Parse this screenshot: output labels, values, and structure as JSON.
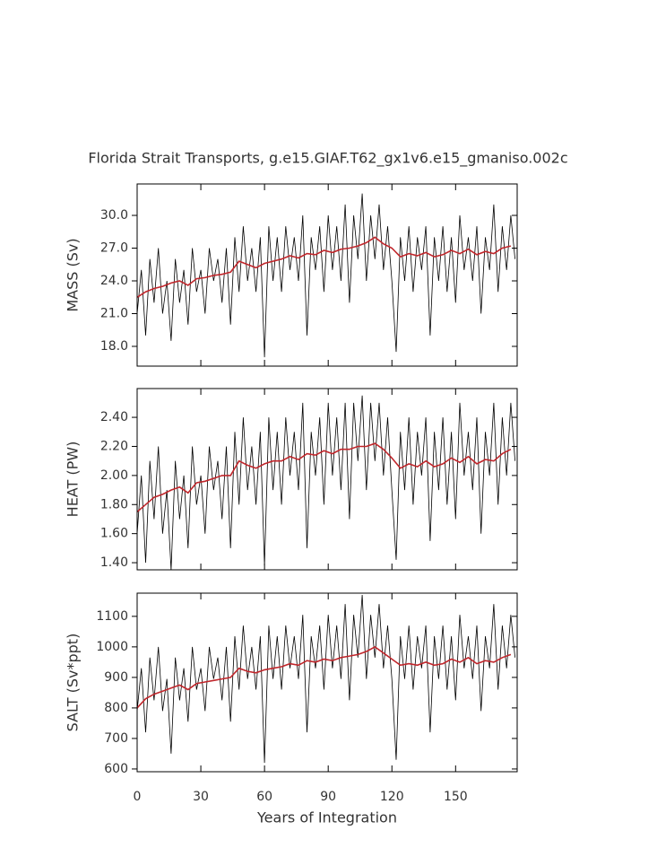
{
  "chart_data": [
    {
      "type": "line",
      "title": "Florida Strait Transports, g.e15.GIAF.T62_gx1v6.e15_gmaniso.002c",
      "ylabel": "MASS (Sv)",
      "xlim": [
        0,
        179
      ],
      "ylim": [
        16.19,
        32.88
      ],
      "yticks": [
        {
          "value": 18,
          "label": "18.0"
        },
        {
          "value": 21,
          "label": "21.0"
        },
        {
          "value": 24,
          "label": "24.0"
        },
        {
          "value": 27,
          "label": "27.0"
        },
        {
          "value": 30,
          "label": "30.0"
        }
      ],
      "series": [
        {
          "color": "#000000",
          "x": [
            0,
            2,
            4,
            6,
            8,
            10,
            12,
            14,
            16,
            18,
            20,
            22,
            24,
            26,
            28,
            30,
            32,
            34,
            36,
            38,
            40,
            42,
            44,
            46,
            48,
            50,
            52,
            54,
            56,
            58,
            60,
            62,
            64,
            66,
            68,
            70,
            72,
            74,
            76,
            78,
            80,
            82,
            84,
            86,
            88,
            90,
            92,
            94,
            96,
            98,
            100,
            102,
            104,
            106,
            108,
            110,
            112,
            114,
            116,
            118,
            120,
            122,
            124,
            126,
            128,
            130,
            132,
            134,
            136,
            138,
            140,
            142,
            144,
            146,
            148,
            150,
            152,
            154,
            156,
            158,
            160,
            162,
            164,
            166,
            168,
            170,
            172,
            174,
            176,
            178
          ],
          "values": [
            21,
            25,
            19,
            26,
            22,
            27,
            21,
            24,
            18.5,
            26,
            22,
            25,
            20,
            27,
            23,
            25,
            21,
            27,
            24,
            26,
            22,
            27,
            20,
            28,
            23,
            29,
            24,
            27,
            23,
            28,
            17,
            29,
            24,
            28,
            23,
            29,
            25,
            28,
            24,
            30,
            19,
            28,
            25,
            29,
            23,
            30,
            25,
            29,
            24,
            31,
            22,
            30,
            26,
            32,
            24,
            30,
            26,
            31,
            25,
            29,
            24,
            17.5,
            28,
            24,
            29,
            23,
            28,
            25,
            29,
            19,
            28,
            24,
            29,
            23,
            28,
            22,
            30,
            25,
            28,
            24,
            29,
            21,
            28,
            25,
            31,
            23,
            29,
            25,
            30,
            26
          ]
        },
        {
          "color": "#c0262b",
          "x": [
            0,
            4,
            8,
            12,
            16,
            20,
            24,
            28,
            32,
            36,
            40,
            44,
            48,
            52,
            56,
            60,
            64,
            68,
            72,
            76,
            80,
            84,
            88,
            92,
            96,
            100,
            104,
            108,
            112,
            116,
            120,
            124,
            128,
            132,
            136,
            140,
            144,
            148,
            152,
            156,
            160,
            164,
            168,
            172,
            176
          ],
          "values": [
            22.5,
            23,
            23.3,
            23.5,
            23.8,
            24,
            23.6,
            24.2,
            24.3,
            24.5,
            24.6,
            24.8,
            25.8,
            25.5,
            25.2,
            25.6,
            25.8,
            26,
            26.3,
            26.1,
            26.5,
            26.4,
            26.8,
            26.6,
            26.9,
            27,
            27.2,
            27.5,
            28,
            27.4,
            27,
            26.2,
            26.5,
            26.3,
            26.6,
            26.2,
            26.4,
            26.8,
            26.5,
            26.9,
            26.4,
            26.7,
            26.5,
            27,
            27.2
          ]
        }
      ]
    },
    {
      "type": "line",
      "ylabel": "HEAT (PW)",
      "xlim": [
        0,
        179
      ],
      "ylim": [
        1.351,
        2.598
      ],
      "yticks": [
        {
          "value": 1.4,
          "label": "1.40"
        },
        {
          "value": 1.6,
          "label": "1.60"
        },
        {
          "value": 1.8,
          "label": "1.80"
        },
        {
          "value": 2.0,
          "label": "2.00"
        },
        {
          "value": 2.2,
          "label": "2.20"
        },
        {
          "value": 2.4,
          "label": "2.40"
        }
      ],
      "series": [
        {
          "color": "#000000",
          "x": [
            0,
            2,
            4,
            6,
            8,
            10,
            12,
            14,
            16,
            18,
            20,
            22,
            24,
            26,
            28,
            30,
            32,
            34,
            36,
            38,
            40,
            42,
            44,
            46,
            48,
            50,
            52,
            54,
            56,
            58,
            60,
            62,
            64,
            66,
            68,
            70,
            72,
            74,
            76,
            78,
            80,
            82,
            84,
            86,
            88,
            90,
            92,
            94,
            96,
            98,
            100,
            102,
            104,
            106,
            108,
            110,
            112,
            114,
            116,
            118,
            120,
            122,
            124,
            126,
            128,
            130,
            132,
            134,
            136,
            138,
            140,
            142,
            144,
            146,
            148,
            150,
            152,
            154,
            156,
            158,
            160,
            162,
            164,
            166,
            168,
            170,
            172,
            174,
            176,
            178
          ],
          "values": [
            1.6,
            2.0,
            1.4,
            2.1,
            1.7,
            2.2,
            1.6,
            1.9,
            1.35,
            2.1,
            1.7,
            2.0,
            1.5,
            2.2,
            1.8,
            2.0,
            1.6,
            2.2,
            1.9,
            2.1,
            1.7,
            2.2,
            1.5,
            2.3,
            1.8,
            2.4,
            1.9,
            2.2,
            1.8,
            2.3,
            1.38,
            2.4,
            1.9,
            2.3,
            1.8,
            2.4,
            2.0,
            2.3,
            1.9,
            2.5,
            1.5,
            2.3,
            2.0,
            2.4,
            1.8,
            2.5,
            2.0,
            2.4,
            1.9,
            2.5,
            1.7,
            2.5,
            2.1,
            2.55,
            1.9,
            2.5,
            2.1,
            2.5,
            2.0,
            2.4,
            1.9,
            1.42,
            2.3,
            1.9,
            2.4,
            1.8,
            2.3,
            2.0,
            2.4,
            1.55,
            2.3,
            1.9,
            2.4,
            1.8,
            2.3,
            1.7,
            2.5,
            2.0,
            2.3,
            1.9,
            2.4,
            1.6,
            2.3,
            2.0,
            2.5,
            1.8,
            2.4,
            2.0,
            2.5,
            2.1
          ]
        },
        {
          "color": "#c0262b",
          "x": [
            0,
            4,
            8,
            12,
            16,
            20,
            24,
            28,
            32,
            36,
            40,
            44,
            48,
            52,
            56,
            60,
            64,
            68,
            72,
            76,
            80,
            84,
            88,
            92,
            96,
            100,
            104,
            108,
            112,
            116,
            120,
            124,
            128,
            132,
            136,
            140,
            144,
            148,
            152,
            156,
            160,
            164,
            168,
            172,
            176
          ],
          "values": [
            1.75,
            1.8,
            1.85,
            1.87,
            1.9,
            1.92,
            1.88,
            1.95,
            1.96,
            1.98,
            2.0,
            2.0,
            2.1,
            2.07,
            2.05,
            2.08,
            2.1,
            2.1,
            2.13,
            2.11,
            2.15,
            2.14,
            2.17,
            2.15,
            2.18,
            2.18,
            2.2,
            2.2,
            2.22,
            2.18,
            2.12,
            2.05,
            2.08,
            2.06,
            2.1,
            2.06,
            2.08,
            2.12,
            2.09,
            2.13,
            2.08,
            2.11,
            2.1,
            2.15,
            2.18
          ]
        }
      ]
    },
    {
      "type": "line",
      "ylabel": "SALT (Sv*ppt)",
      "xlabel": "Years of Integration",
      "xlim": [
        0,
        179
      ],
      "ylim": [
        591,
        1176
      ],
      "xticks": [
        0,
        30,
        60,
        90,
        120,
        150
      ],
      "yticks": [
        600,
        700,
        800,
        900,
        1000,
        1100
      ],
      "series": [
        {
          "color": "#000000",
          "x": [
            0,
            2,
            4,
            6,
            8,
            10,
            12,
            14,
            16,
            18,
            20,
            22,
            24,
            26,
            28,
            30,
            32,
            34,
            36,
            38,
            40,
            42,
            44,
            46,
            48,
            50,
            52,
            54,
            56,
            58,
            60,
            62,
            64,
            66,
            68,
            70,
            72,
            74,
            76,
            78,
            80,
            82,
            84,
            86,
            88,
            90,
            92,
            94,
            96,
            98,
            100,
            102,
            104,
            106,
            108,
            110,
            112,
            114,
            116,
            118,
            120,
            122,
            124,
            126,
            128,
            130,
            132,
            134,
            136,
            138,
            140,
            142,
            144,
            146,
            148,
            150,
            152,
            154,
            156,
            158,
            160,
            162,
            164,
            166,
            168,
            170,
            172,
            174,
            176,
            178
          ],
          "values": [
            790,
            930,
            720,
            965,
            825,
            1000,
            790,
            895,
            650,
            965,
            825,
            930,
            755,
            1000,
            860,
            930,
            790,
            1000,
            895,
            965,
            825,
            1000,
            755,
            1035,
            860,
            1070,
            895,
            1000,
            860,
            1035,
            620,
            1070,
            895,
            1035,
            860,
            1070,
            930,
            1035,
            895,
            1105,
            720,
            1035,
            930,
            1070,
            860,
            1105,
            930,
            1070,
            895,
            1140,
            825,
            1105,
            965,
            1170,
            895,
            1105,
            965,
            1140,
            930,
            1070,
            895,
            630,
            1035,
            895,
            1070,
            860,
            1035,
            930,
            1070,
            720,
            1035,
            895,
            1070,
            860,
            1035,
            825,
            1105,
            930,
            1035,
            895,
            1070,
            790,
            1035,
            930,
            1140,
            860,
            1070,
            930,
            1105,
            965
          ]
        },
        {
          "color": "#c0262b",
          "x": [
            0,
            4,
            8,
            12,
            16,
            20,
            24,
            28,
            32,
            36,
            40,
            44,
            48,
            52,
            56,
            60,
            64,
            68,
            72,
            76,
            80,
            84,
            88,
            92,
            96,
            100,
            104,
            108,
            112,
            116,
            120,
            124,
            128,
            132,
            136,
            140,
            144,
            148,
            152,
            156,
            160,
            164,
            168,
            172,
            176
          ],
          "values": [
            800,
            830,
            845,
            855,
            865,
            875,
            860,
            880,
            885,
            890,
            895,
            900,
            930,
            920,
            915,
            925,
            930,
            935,
            945,
            940,
            955,
            950,
            960,
            955,
            965,
            970,
            975,
            985,
            1000,
            980,
            960,
            940,
            945,
            940,
            950,
            940,
            945,
            960,
            950,
            965,
            945,
            955,
            950,
            965,
            975
          ]
        }
      ]
    }
  ]
}
